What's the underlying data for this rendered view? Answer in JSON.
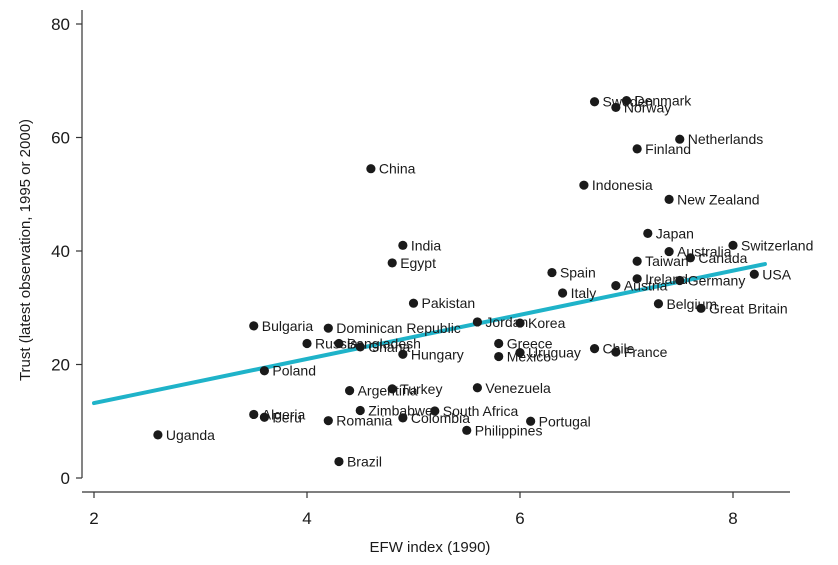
{
  "chart_data": {
    "type": "scatter",
    "xlabel": "EFW index (1990)",
    "ylabel": "Trust (latest observation, 1995 or 2000)",
    "xlim": [
      2,
      8.3
    ],
    "ylim": [
      0,
      80
    ],
    "xticks": [
      2,
      4,
      6,
      8
    ],
    "yticks": [
      0,
      20,
      40,
      60,
      80
    ],
    "grid": false,
    "colors": {
      "points": "#1a1a1a",
      "fit_line": "#1fb3c9",
      "axes": "#333333"
    },
    "fit_line": {
      "x": [
        2,
        8.3
      ],
      "y": [
        13.2,
        37.7
      ]
    },
    "points": [
      {
        "label": "Denmark",
        "x": 7.0,
        "y": 66.5
      },
      {
        "label": "Sweden",
        "x": 6.7,
        "y": 66.3
      },
      {
        "label": "Norway",
        "x": 6.9,
        "y": 65.3
      },
      {
        "label": "Netherlands",
        "x": 7.5,
        "y": 59.7
      },
      {
        "label": "Finland",
        "x": 7.1,
        "y": 58.0
      },
      {
        "label": "China",
        "x": 4.6,
        "y": 54.5
      },
      {
        "label": "Indonesia",
        "x": 6.6,
        "y": 51.6
      },
      {
        "label": "New Zealand",
        "x": 7.4,
        "y": 49.1
      },
      {
        "label": "Japan",
        "x": 7.2,
        "y": 43.1
      },
      {
        "label": "Switzerland",
        "x": 8.0,
        "y": 41.0
      },
      {
        "label": "India",
        "x": 4.9,
        "y": 41.0
      },
      {
        "label": "Australia",
        "x": 7.4,
        "y": 39.9
      },
      {
        "label": "Canada",
        "x": 7.6,
        "y": 38.8
      },
      {
        "label": "Taiwan",
        "x": 7.1,
        "y": 38.2
      },
      {
        "label": "Egypt",
        "x": 4.8,
        "y": 37.9
      },
      {
        "label": "USA",
        "x": 8.2,
        "y": 35.9
      },
      {
        "label": "Spain",
        "x": 6.3,
        "y": 36.2
      },
      {
        "label": "Ireland",
        "x": 7.1,
        "y": 35.1
      },
      {
        "label": "Germany",
        "x": 7.5,
        "y": 34.8
      },
      {
        "label": "Austria",
        "x": 6.9,
        "y": 33.9
      },
      {
        "label": "Italy",
        "x": 6.4,
        "y": 32.6
      },
      {
        "label": "Pakistan",
        "x": 5.0,
        "y": 30.8
      },
      {
        "label": "Belgium",
        "x": 7.3,
        "y": 30.7
      },
      {
        "label": "Great Britain",
        "x": 7.7,
        "y": 29.9
      },
      {
        "label": "Jordan",
        "x": 5.6,
        "y": 27.5
      },
      {
        "label": "Korea",
        "x": 6.0,
        "y": 27.3
      },
      {
        "label": "Bulgaria",
        "x": 3.5,
        "y": 26.8
      },
      {
        "label": "Dominican Republic",
        "x": 4.2,
        "y": 26.4
      },
      {
        "label": "Russia",
        "x": 4.0,
        "y": 23.7
      },
      {
        "label": "Bangladesh",
        "x": 4.3,
        "y": 23.7
      },
      {
        "label": "Greece",
        "x": 5.8,
        "y": 23.7
      },
      {
        "label": "Ghana",
        "x": 4.5,
        "y": 23.1
      },
      {
        "label": "Chile",
        "x": 6.7,
        "y": 22.8
      },
      {
        "label": "Hungary",
        "x": 4.9,
        "y": 21.8
      },
      {
        "label": "Uruguay",
        "x": 6.0,
        "y": 22.1
      },
      {
        "label": "France",
        "x": 6.9,
        "y": 22.2
      },
      {
        "label": "Mexico",
        "x": 5.8,
        "y": 21.4
      },
      {
        "label": "Poland",
        "x": 3.6,
        "y": 18.9
      },
      {
        "label": "Argentina",
        "x": 4.4,
        "y": 15.4
      },
      {
        "label": "Turkey",
        "x": 4.8,
        "y": 15.7
      },
      {
        "label": "Venezuela",
        "x": 5.6,
        "y": 15.9
      },
      {
        "label": "Zimbabwe",
        "x": 4.5,
        "y": 11.9
      },
      {
        "label": "South Africa",
        "x": 5.2,
        "y": 11.8
      },
      {
        "label": "Algeria",
        "x": 3.5,
        "y": 11.2
      },
      {
        "label": "Peru",
        "x": 3.6,
        "y": 10.7
      },
      {
        "label": "Colombia",
        "x": 4.9,
        "y": 10.6
      },
      {
        "label": "Romania",
        "x": 4.2,
        "y": 10.1
      },
      {
        "label": "Portugal",
        "x": 6.1,
        "y": 10.0
      },
      {
        "label": "Philippines",
        "x": 5.5,
        "y": 8.4
      },
      {
        "label": "Uganda",
        "x": 2.6,
        "y": 7.6
      },
      {
        "label": "Brazil",
        "x": 4.3,
        "y": 2.9
      }
    ]
  }
}
